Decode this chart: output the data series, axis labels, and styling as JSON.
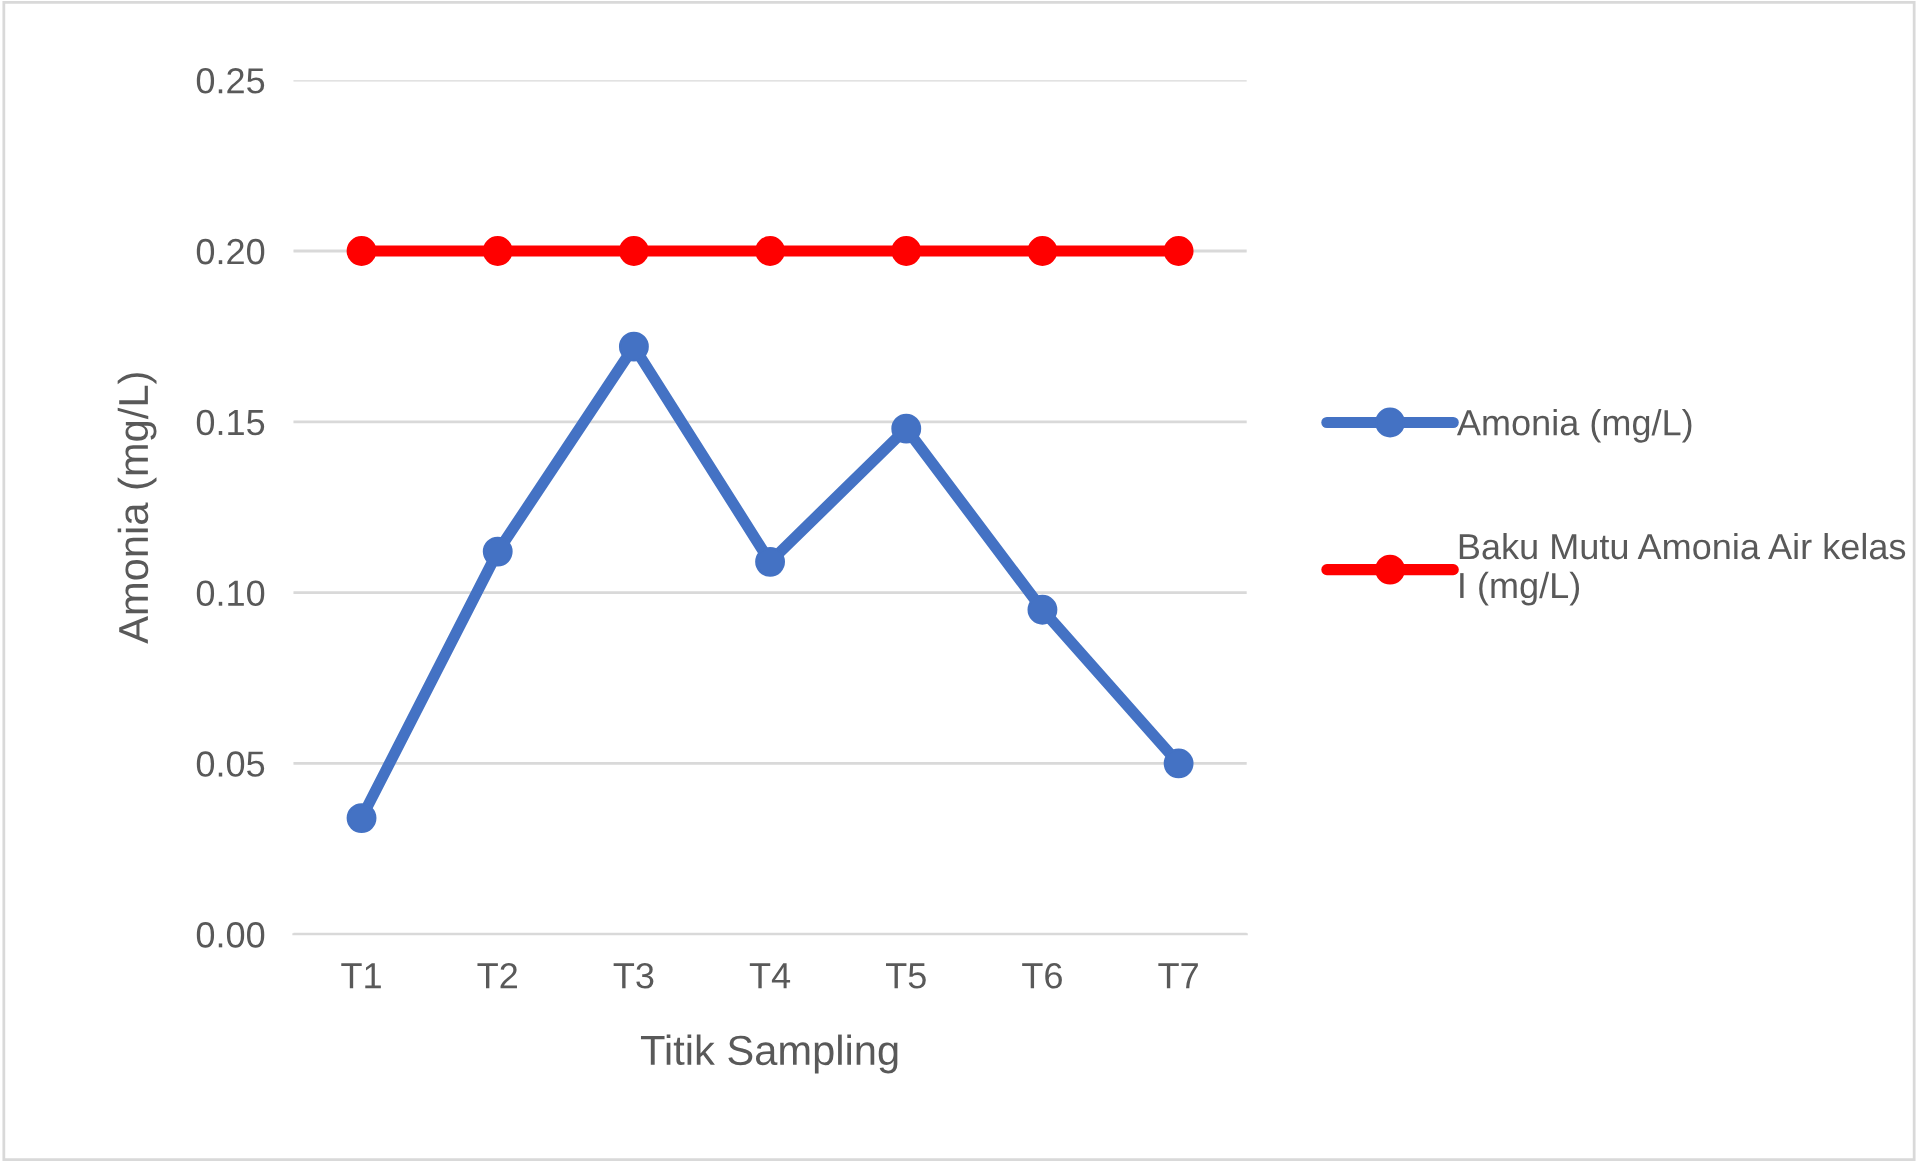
{
  "chart_data": {
    "type": "line",
    "xlabel": "Titik Sampling",
    "ylabel": "Amonia (mg/L)",
    "categories": [
      "T1",
      "T2",
      "T3",
      "T4",
      "T5",
      "T6",
      "T7"
    ],
    "series": [
      {
        "name": "Amonia (mg/L)",
        "color": "#4472c4",
        "values": [
          0.034,
          0.112,
          0.172,
          0.109,
          0.148,
          0.095,
          0.05
        ]
      },
      {
        "name": "Baku Mutu Amonia Air kelas I (mg/L)",
        "color": "#ff0000",
        "values": [
          0.2,
          0.2,
          0.2,
          0.2,
          0.2,
          0.2,
          0.2
        ]
      }
    ],
    "ylim": [
      0,
      0.25
    ],
    "yticks": [
      {
        "value": 0,
        "label": "0.00"
      },
      {
        "value": 0.05,
        "label": "0.05"
      },
      {
        "value": 0.1,
        "label": "0.10"
      },
      {
        "value": 0.15,
        "label": "0.15"
      },
      {
        "value": 0.2,
        "label": "0.20"
      },
      {
        "value": 0.25,
        "label": "0.25"
      }
    ],
    "grid": "y",
    "legend": "right",
    "marker": "circle",
    "line_style": "solid"
  }
}
